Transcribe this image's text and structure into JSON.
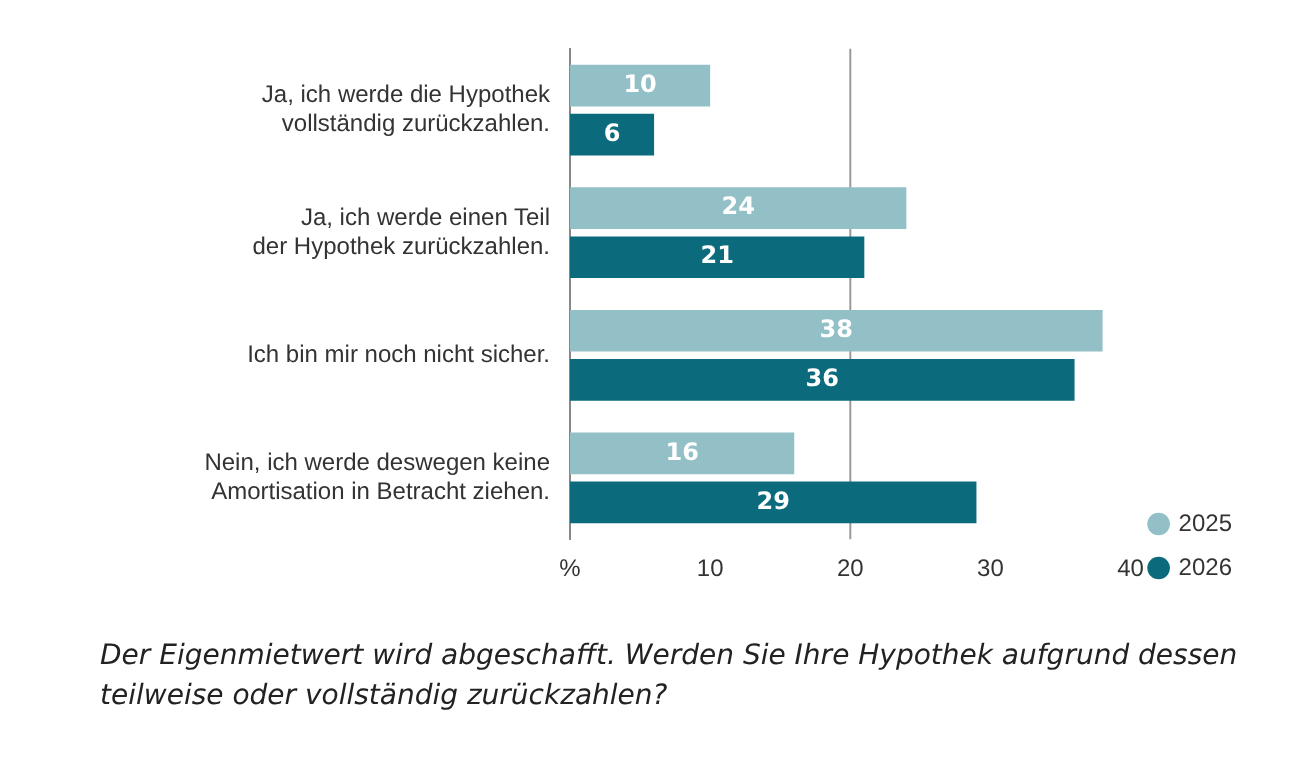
{
  "chart_data": {
    "type": "bar",
    "orientation": "horizontal",
    "categories": [
      "Ja, ich werde die Hypothek\nvollständig zurückzahlen.",
      "Ja, ich werde einen Teil\nder Hypothek zurückzahlen.",
      "Ich bin mir noch nicht sicher.",
      "Nein, ich werde deswegen keine\nAmortisation in Betracht ziehen."
    ],
    "series": [
      {
        "name": "2025",
        "color": "#93bfc7",
        "values": [
          10,
          24,
          38,
          16
        ]
      },
      {
        "name": "2026",
        "color": "#0b6b7c",
        "values": [
          6,
          21,
          36,
          29
        ]
      }
    ],
    "xlim": [
      0,
      40
    ],
    "xticks": [
      {
        "value": 0,
        "label": "%"
      },
      10,
      20,
      30,
      40
    ],
    "grid": false,
    "ref_lines": [
      {
        "axis": "x",
        "value": 20,
        "color": "#9a9a9a"
      }
    ],
    "data_labels": true,
    "legend": "bottom right",
    "annotations": [
      "Der Eigenmietwert wird abgeschafft. Werden Sie Ihre Hypothek aufgrund dessen teilweise oder vollständig zurückzahlen?"
    ]
  }
}
